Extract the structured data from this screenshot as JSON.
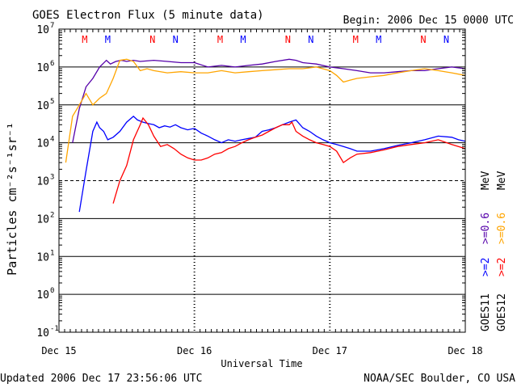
{
  "chart_data": {
    "type": "line",
    "title": "GOES Electron Flux (5 minute data)",
    "begin": "Begin: 2006 Dec 15 0000 UTC",
    "xlabel": "Universal Time",
    "ylabel": "Particles cm⁻²s⁻¹sr⁻¹",
    "y_scale": "log",
    "ylim": [
      0.1,
      10000000
    ],
    "y_ticks": [
      {
        "base": "10",
        "exp": "7"
      },
      {
        "base": "10",
        "exp": "6"
      },
      {
        "base": "10",
        "exp": "5"
      },
      {
        "base": "10",
        "exp": "4"
      },
      {
        "base": "10",
        "exp": "3"
      },
      {
        "base": "10",
        "exp": "2"
      },
      {
        "base": "10",
        "exp": "1"
      },
      {
        "base": "10",
        "exp": "0"
      },
      {
        "base": "10",
        "exp": "-1"
      }
    ],
    "x_unit": "days since 2006 Dec 15 0000 UTC",
    "xlim": [
      0,
      3
    ],
    "x_ticks": [
      {
        "x": 0,
        "label": "Dec 15"
      },
      {
        "x": 1,
        "label": "Dec 16"
      },
      {
        "x": 2,
        "label": "Dec 17"
      },
      {
        "x": 3,
        "label": "Dec 18"
      }
    ],
    "grid": true,
    "right_legend": [
      {
        "text": "GOES11",
        "color": "#000000"
      },
      {
        "text": ">=2",
        "color": "#0000ff"
      },
      {
        "text": ">=0.6",
        "color": "#5500aa"
      },
      {
        "text": "MeV",
        "color": "#000000"
      },
      {
        "text": "GOES12",
        "color": "#000000"
      },
      {
        "text": ">=2",
        "color": "#ff0000"
      },
      {
        "text": ">=0.6",
        "color": "#ffa500"
      },
      {
        "text": "MeV",
        "color": "#000000"
      }
    ],
    "mn_markers": [
      {
        "x": 0.19,
        "label": "M",
        "color": "#ff0000"
      },
      {
        "x": 0.36,
        "label": "M",
        "color": "#0000ff"
      },
      {
        "x": 0.69,
        "label": "N",
        "color": "#ff0000"
      },
      {
        "x": 0.86,
        "label": "N",
        "color": "#0000ff"
      },
      {
        "x": 1.19,
        "label": "M",
        "color": "#ff0000"
      },
      {
        "x": 1.36,
        "label": "M",
        "color": "#0000ff"
      },
      {
        "x": 1.69,
        "label": "N",
        "color": "#ff0000"
      },
      {
        "x": 1.86,
        "label": "N",
        "color": "#0000ff"
      },
      {
        "x": 2.19,
        "label": "M",
        "color": "#ff0000"
      },
      {
        "x": 2.36,
        "label": "M",
        "color": "#0000ff"
      },
      {
        "x": 2.69,
        "label": "N",
        "color": "#ff0000"
      },
      {
        "x": 2.86,
        "label": "N",
        "color": "#0000ff"
      }
    ],
    "series": [
      {
        "name": "GOES11 >=2 MeV",
        "color": "#0000ff",
        "x": [
          0.15,
          0.2,
          0.25,
          0.28,
          0.3,
          0.33,
          0.36,
          0.4,
          0.45,
          0.5,
          0.55,
          0.58,
          0.62,
          0.66,
          0.7,
          0.74,
          0.78,
          0.82,
          0.86,
          0.9,
          0.95,
          1.0,
          1.05,
          1.1,
          1.15,
          1.2,
          1.25,
          1.3,
          1.35,
          1.4,
          1.45,
          1.5,
          1.55,
          1.6,
          1.65,
          1.7,
          1.75,
          1.8,
          1.85,
          1.9,
          1.95,
          2.0,
          2.05,
          2.1,
          2.15,
          2.2,
          2.3,
          2.4,
          2.5,
          2.6,
          2.7,
          2.8,
          2.9,
          2.95,
          3.0
        ],
        "y": [
          150,
          1800,
          20000,
          35000,
          25000,
          20000,
          12000,
          14000,
          20000,
          35000,
          50000,
          40000,
          35000,
          32000,
          30000,
          25000,
          28000,
          26000,
          30000,
          25000,
          22000,
          24000,
          18000,
          15000,
          12000,
          10000,
          12000,
          11000,
          12000,
          13000,
          14000,
          20000,
          22000,
          25000,
          30000,
          35000,
          40000,
          25000,
          20000,
          15000,
          12000,
          10000,
          9000,
          8000,
          7000,
          6000,
          6000,
          7000,
          8500,
          10000,
          12000,
          15000,
          14000,
          12000,
          11000
        ]
      },
      {
        "name": "GOES11 >=0.6 MeV",
        "color": "#5500aa",
        "x": [
          0.1,
          0.15,
          0.2,
          0.25,
          0.3,
          0.35,
          0.38,
          0.42,
          0.46,
          0.5,
          0.55,
          0.6,
          0.7,
          0.8,
          0.9,
          1.0,
          1.1,
          1.2,
          1.3,
          1.4,
          1.5,
          1.6,
          1.7,
          1.75,
          1.8,
          1.9,
          2.0,
          2.1,
          2.2,
          2.3,
          2.4,
          2.5,
          2.6,
          2.7,
          2.8,
          2.9,
          3.0
        ],
        "y": [
          10000,
          80000,
          300000,
          500000,
          1000000,
          1500000,
          1200000,
          1400000,
          1500000,
          1400000,
          1500000,
          1400000,
          1500000,
          1400000,
          1300000,
          1300000,
          1000000,
          1100000,
          1000000,
          1100000,
          1200000,
          1400000,
          1600000,
          1500000,
          1300000,
          1200000,
          1000000,
          900000,
          800000,
          700000,
          700000,
          750000,
          800000,
          800000,
          900000,
          1000000,
          900000
        ]
      },
      {
        "name": "GOES12 >=2 MeV",
        "color": "#ff0000",
        "x": [
          0.4,
          0.45,
          0.5,
          0.55,
          0.6,
          0.62,
          0.66,
          0.7,
          0.75,
          0.8,
          0.85,
          0.9,
          0.95,
          1.0,
          1.05,
          1.1,
          1.15,
          1.2,
          1.25,
          1.3,
          1.35,
          1.4,
          1.45,
          1.5,
          1.55,
          1.6,
          1.65,
          1.7,
          1.72,
          1.75,
          1.8,
          1.85,
          1.9,
          1.95,
          2.0,
          2.05,
          2.1,
          2.15,
          2.2,
          2.3,
          2.4,
          2.5,
          2.6,
          2.7,
          2.8,
          2.9,
          3.0
        ],
        "y": [
          250,
          1000,
          2500,
          12000,
          30000,
          45000,
          30000,
          15000,
          8000,
          9000,
          7000,
          5000,
          4000,
          3500,
          3500,
          4000,
          5000,
          5500,
          7000,
          8000,
          10000,
          12000,
          14000,
          16000,
          20000,
          25000,
          30000,
          30000,
          35000,
          20000,
          15000,
          12000,
          10000,
          9000,
          8000,
          6000,
          3000,
          4000,
          5000,
          5500,
          6500,
          8000,
          9000,
          10000,
          12000,
          9000,
          7000
        ]
      },
      {
        "name": "GOES12 >=0.6 MeV",
        "color": "#ffa500",
        "x": [
          0.05,
          0.1,
          0.15,
          0.2,
          0.25,
          0.3,
          0.35,
          0.4,
          0.45,
          0.5,
          0.55,
          0.6,
          0.65,
          0.7,
          0.8,
          0.9,
          1.0,
          1.1,
          1.2,
          1.3,
          1.4,
          1.5,
          1.6,
          1.7,
          1.8,
          1.9,
          2.0,
          2.05,
          2.1,
          2.15,
          2.2,
          2.3,
          2.4,
          2.5,
          2.6,
          2.7,
          2.8,
          2.9,
          3.0
        ],
        "y": [
          3000,
          50000,
          100000,
          200000,
          100000,
          150000,
          200000,
          500000,
          1500000,
          1600000,
          1400000,
          800000,
          900000,
          800000,
          700000,
          750000,
          700000,
          700000,
          800000,
          700000,
          750000,
          800000,
          850000,
          900000,
          900000,
          1000000,
          800000,
          600000,
          400000,
          450000,
          500000,
          550000,
          600000,
          700000,
          800000,
          900000,
          800000,
          700000,
          600000
        ]
      }
    ]
  },
  "footer": {
    "updated": "Updated 2006 Dec 17 23:56:06 UTC",
    "credit": "NOAA/SEC Boulder, CO USA"
  }
}
